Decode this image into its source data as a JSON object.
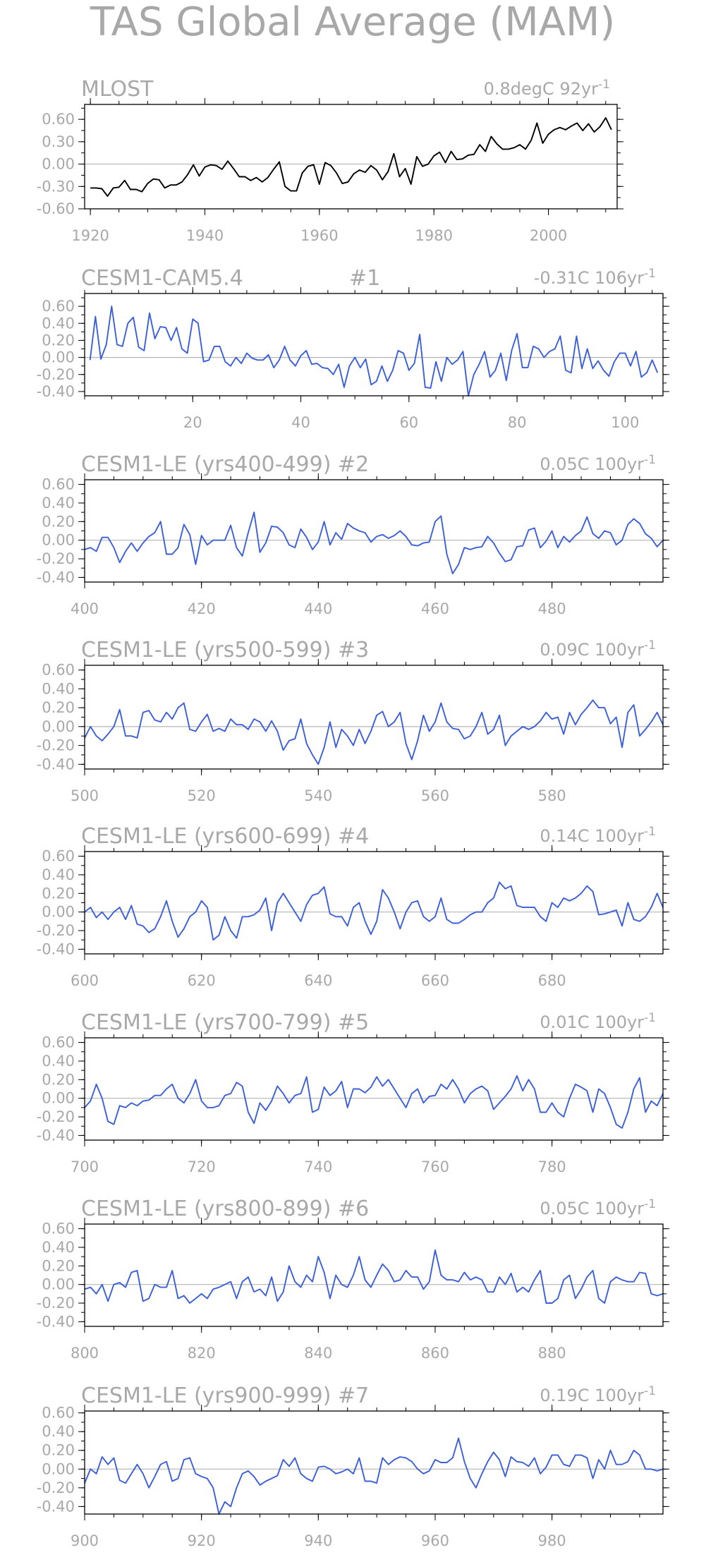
{
  "title": "TAS Global Average (MAM)",
  "chart_data": [
    {
      "type": "line",
      "title": "MLOST",
      "annotation": "0.8degC 92yr",
      "annotation_sup": "-1",
      "line_color": "#000000",
      "xlim": [
        1919,
        2012
      ],
      "ylim": [
        -0.6,
        0.8
      ],
      "yticks": [
        -0.6,
        -0.3,
        0.0,
        0.3,
        0.6
      ],
      "ytick_labels": [
        "-0.60",
        "-0.30",
        "0.00",
        "0.30",
        "0.60"
      ],
      "xticks": [
        1920,
        1940,
        1960,
        1980,
        2000
      ],
      "x": [
        1920,
        1921,
        1922,
        1923,
        1924,
        1925,
        1926,
        1927,
        1928,
        1929,
        1930,
        1931,
        1932,
        1933,
        1934,
        1935,
        1936,
        1937,
        1938,
        1939,
        1940,
        1941,
        1942,
        1943,
        1944,
        1945,
        1946,
        1947,
        1948,
        1949,
        1950,
        1951,
        1952,
        1953,
        1954,
        1955,
        1956,
        1957,
        1958,
        1959,
        1960,
        1961,
        1962,
        1963,
        1964,
        1965,
        1966,
        1967,
        1968,
        1969,
        1970,
        1971,
        1972,
        1973,
        1974,
        1975,
        1976,
        1977,
        1978,
        1979,
        1980,
        1981,
        1982,
        1983,
        1984,
        1985,
        1986,
        1987,
        1988,
        1989,
        1990,
        1991,
        1992,
        1993,
        1994,
        1995,
        1996,
        1997,
        1998,
        1999,
        2000,
        2001,
        2002,
        2003,
        2004,
        2005,
        2006,
        2007,
        2008,
        2009,
        2010,
        2011
      ],
      "values": [
        -0.32,
        -0.32,
        -0.33,
        -0.43,
        -0.32,
        -0.31,
        -0.22,
        -0.34,
        -0.34,
        -0.37,
        -0.26,
        -0.2,
        -0.21,
        -0.32,
        -0.28,
        -0.28,
        -0.24,
        -0.14,
        -0.01,
        -0.16,
        -0.04,
        -0.01,
        -0.02,
        -0.07,
        0.04,
        -0.06,
        -0.17,
        -0.17,
        -0.22,
        -0.18,
        -0.24,
        -0.18,
        -0.07,
        0.03,
        -0.3,
        -0.36,
        -0.36,
        -0.12,
        -0.03,
        -0.01,
        -0.27,
        0.02,
        -0.02,
        -0.12,
        -0.26,
        -0.24,
        -0.13,
        -0.08,
        -0.11,
        -0.02,
        -0.08,
        -0.21,
        -0.1,
        0.14,
        -0.17,
        -0.06,
        -0.27,
        0.1,
        -0.03,
        0.0,
        0.11,
        0.16,
        0.02,
        0.17,
        0.06,
        0.07,
        0.12,
        0.13,
        0.26,
        0.17,
        0.37,
        0.27,
        0.2,
        0.2,
        0.22,
        0.26,
        0.2,
        0.32,
        0.55,
        0.28,
        0.4,
        0.46,
        0.49,
        0.46,
        0.51,
        0.55,
        0.45,
        0.54,
        0.43,
        0.5,
        0.62,
        0.46
      ]
    },
    {
      "type": "line",
      "title": "CESM1-CAM5.4",
      "title_mid": "#1",
      "annotation": "-0.31C 106yr",
      "annotation_sup": "-1",
      "line_color": "#3b5fd9",
      "xlim": [
        0,
        107
      ],
      "ylim": [
        -0.45,
        0.75
      ],
      "yticks": [
        -0.4,
        -0.2,
        0.0,
        0.2,
        0.4,
        0.6
      ],
      "ytick_labels": [
        "-0.40",
        "-0.20",
        "0.00",
        "0.20",
        "0.40",
        "0.60"
      ],
      "xticks": [
        20,
        40,
        60,
        80,
        100
      ],
      "x_start": 1,
      "values": [
        -0.03,
        0.48,
        -0.02,
        0.15,
        0.6,
        0.15,
        0.13,
        0.4,
        0.47,
        0.12,
        0.08,
        0.52,
        0.22,
        0.36,
        0.35,
        0.2,
        0.35,
        0.1,
        0.05,
        0.45,
        0.4,
        -0.05,
        -0.03,
        0.13,
        0.13,
        -0.05,
        -0.1,
        0.0,
        -0.07,
        0.05,
        -0.01,
        -0.03,
        -0.03,
        0.03,
        -0.12,
        -0.03,
        0.13,
        -0.03,
        -0.1,
        0.02,
        0.08,
        -0.08,
        -0.07,
        -0.12,
        -0.13,
        -0.2,
        -0.08,
        -0.35,
        -0.1,
        0.0,
        -0.12,
        -0.02,
        -0.32,
        -0.28,
        -0.1,
        -0.28,
        -0.15,
        0.08,
        0.05,
        -0.15,
        -0.07,
        0.27,
        -0.35,
        -0.36,
        -0.05,
        -0.28,
        0.0,
        -0.08,
        -0.03,
        0.07,
        -0.45,
        -0.2,
        -0.08,
        0.07,
        -0.23,
        -0.15,
        0.05,
        -0.27,
        0.08,
        0.28,
        -0.12,
        -0.12,
        0.13,
        0.1,
        0.0,
        0.07,
        0.1,
        0.25,
        -0.15,
        -0.18,
        0.25,
        -0.13,
        0.1,
        -0.13,
        -0.04,
        -0.15,
        -0.22,
        -0.05,
        0.05,
        0.05,
        -0.1,
        0.07,
        -0.23,
        -0.18,
        -0.03,
        -0.18
      ]
    },
    {
      "type": "line",
      "title": "CESM1-LE (yrs400-499) #2",
      "annotation": "0.05C 100yr",
      "annotation_sup": "-1",
      "line_color": "#3b5fd9",
      "xlim": [
        400,
        499
      ],
      "ylim": [
        -0.45,
        0.65
      ],
      "yticks": [
        -0.4,
        -0.2,
        0.0,
        0.2,
        0.4,
        0.6
      ],
      "ytick_labels": [
        "-0.40",
        "-0.20",
        "0.00",
        "0.20",
        "0.40",
        "0.60"
      ],
      "xticks": [
        400,
        420,
        440,
        460,
        480
      ],
      "x_start": 400,
      "values": [
        -0.1,
        -0.08,
        -0.12,
        0.03,
        0.03,
        -0.08,
        -0.24,
        -0.12,
        -0.03,
        -0.12,
        -0.03,
        0.04,
        0.08,
        0.2,
        -0.15,
        -0.15,
        -0.08,
        0.17,
        0.06,
        -0.26,
        0.05,
        -0.05,
        0.0,
        0.0,
        0.0,
        0.16,
        -0.08,
        -0.17,
        0.08,
        0.3,
        -0.13,
        -0.03,
        0.15,
        0.14,
        0.08,
        -0.05,
        -0.08,
        0.12,
        0.03,
        -0.1,
        -0.02,
        0.2,
        -0.05,
        0.08,
        0.01,
        0.18,
        0.13,
        0.1,
        0.08,
        -0.02,
        0.04,
        0.06,
        0.02,
        0.05,
        0.1,
        0.04,
        -0.05,
        -0.06,
        -0.03,
        -0.02,
        0.2,
        0.26,
        -0.15,
        -0.36,
        -0.26,
        -0.08,
        -0.1,
        -0.08,
        -0.07,
        0.04,
        -0.03,
        -0.14,
        -0.23,
        -0.21,
        -0.07,
        -0.06,
        0.11,
        0.13,
        -0.08,
        -0.01,
        0.1,
        -0.08,
        0.04,
        -0.02,
        0.05,
        0.1,
        0.25,
        0.07,
        0.02,
        0.1,
        0.08,
        -0.05,
        0.0,
        0.17,
        0.23,
        0.18,
        0.07,
        0.02,
        -0.07,
        0.0
      ]
    },
    {
      "type": "line",
      "title": "CESM1-LE (yrs500-599) #3",
      "annotation": "0.09C 100yr",
      "annotation_sup": "-1",
      "line_color": "#3b5fd9",
      "xlim": [
        500,
        599
      ],
      "ylim": [
        -0.45,
        0.65
      ],
      "yticks": [
        -0.4,
        -0.2,
        0.0,
        0.2,
        0.4,
        0.6
      ],
      "ytick_labels": [
        "-0.40",
        "-0.20",
        "0.00",
        "0.20",
        "0.40",
        "0.60"
      ],
      "xticks": [
        500,
        520,
        540,
        560,
        580
      ],
      "x_start": 500,
      "values": [
        -0.12,
        0.0,
        -0.1,
        -0.15,
        -0.08,
        0.0,
        0.18,
        -0.1,
        -0.1,
        -0.12,
        0.15,
        0.17,
        0.07,
        0.05,
        0.15,
        0.08,
        0.2,
        0.25,
        -0.03,
        -0.05,
        0.05,
        0.13,
        -0.05,
        -0.02,
        -0.05,
        0.08,
        0.02,
        0.02,
        -0.03,
        0.08,
        0.05,
        -0.05,
        0.06,
        -0.05,
        -0.25,
        -0.15,
        -0.13,
        0.08,
        -0.18,
        -0.3,
        -0.4,
        -0.22,
        0.05,
        -0.22,
        -0.03,
        -0.1,
        -0.2,
        -0.03,
        -0.18,
        -0.05,
        0.12,
        0.16,
        0.0,
        0.05,
        0.15,
        -0.18,
        -0.35,
        -0.15,
        0.12,
        -0.05,
        0.05,
        0.25,
        0.05,
        -0.02,
        -0.03,
        -0.13,
        -0.1,
        0.0,
        0.15,
        -0.08,
        -0.03,
        0.12,
        -0.2,
        -0.1,
        -0.05,
        0.0,
        -0.03,
        0.0,
        0.06,
        0.15,
        0.08,
        0.1,
        -0.08,
        0.15,
        0.02,
        0.13,
        0.2,
        0.28,
        0.2,
        0.2,
        0.03,
        0.1,
        -0.22,
        0.15,
        0.23,
        -0.1,
        -0.03,
        0.05,
        0.15,
        0.02
      ]
    },
    {
      "type": "line",
      "title": "CESM1-LE (yrs600-699) #4",
      "annotation": "0.14C 100yr",
      "annotation_sup": "-1",
      "line_color": "#3b5fd9",
      "xlim": [
        600,
        699
      ],
      "ylim": [
        -0.45,
        0.65
      ],
      "yticks": [
        -0.4,
        -0.2,
        0.0,
        0.2,
        0.4,
        0.6
      ],
      "ytick_labels": [
        "-0.40",
        "-0.20",
        "0.00",
        "0.20",
        "0.40",
        "0.60"
      ],
      "xticks": [
        600,
        620,
        640,
        660,
        680
      ],
      "x_start": 600,
      "values": [
        0.0,
        0.05,
        -0.06,
        0.0,
        -0.08,
        0.0,
        0.05,
        -0.08,
        0.07,
        -0.13,
        -0.15,
        -0.22,
        -0.18,
        -0.05,
        0.12,
        -0.1,
        -0.27,
        -0.18,
        -0.05,
        0.0,
        0.12,
        0.05,
        -0.3,
        -0.25,
        -0.05,
        -0.2,
        -0.28,
        -0.05,
        -0.05,
        -0.03,
        0.02,
        0.15,
        -0.2,
        0.1,
        0.2,
        0.1,
        0.0,
        -0.1,
        0.08,
        0.18,
        0.2,
        0.27,
        -0.02,
        -0.05,
        -0.05,
        -0.15,
        0.05,
        0.1,
        -0.1,
        -0.24,
        -0.1,
        0.24,
        0.15,
        0.0,
        -0.18,
        0.0,
        0.1,
        0.12,
        -0.05,
        -0.1,
        -0.05,
        0.15,
        -0.08,
        -0.12,
        -0.12,
        -0.08,
        -0.03,
        0.0,
        0.0,
        0.1,
        0.15,
        0.32,
        0.25,
        0.28,
        0.07,
        0.05,
        0.05,
        0.05,
        -0.05,
        -0.1,
        0.1,
        0.05,
        0.15,
        0.12,
        0.15,
        0.2,
        0.28,
        0.22,
        -0.03,
        -0.02,
        0.0,
        0.02,
        -0.15,
        0.1,
        -0.08,
        -0.1,
        -0.05,
        0.05,
        0.2,
        0.05
      ]
    },
    {
      "type": "line",
      "title": "CESM1-LE (yrs700-799) #5",
      "annotation": "0.01C 100yr",
      "annotation_sup": "-1",
      "line_color": "#3b5fd9",
      "xlim": [
        700,
        799
      ],
      "ylim": [
        -0.45,
        0.65
      ],
      "yticks": [
        -0.4,
        -0.2,
        0.0,
        0.2,
        0.4,
        0.6
      ],
      "ytick_labels": [
        "-0.40",
        "-0.20",
        "0.00",
        "0.20",
        "0.40",
        "0.60"
      ],
      "xticks": [
        700,
        720,
        740,
        760,
        780
      ],
      "x_start": 700,
      "values": [
        -0.1,
        -0.03,
        0.15,
        0.0,
        -0.25,
        -0.28,
        -0.08,
        -0.1,
        -0.05,
        -0.08,
        -0.03,
        -0.02,
        0.03,
        0.03,
        0.1,
        0.15,
        0.0,
        -0.05,
        0.05,
        0.2,
        -0.03,
        -0.1,
        -0.1,
        -0.08,
        0.03,
        0.05,
        0.17,
        0.13,
        -0.15,
        -0.27,
        -0.05,
        -0.13,
        -0.03,
        0.13,
        0.05,
        -0.05,
        0.03,
        0.05,
        0.23,
        -0.15,
        -0.12,
        0.12,
        0.03,
        0.08,
        0.18,
        -0.1,
        0.1,
        0.1,
        0.06,
        0.12,
        0.23,
        0.13,
        0.2,
        0.1,
        0.0,
        -0.1,
        0.05,
        0.1,
        -0.05,
        0.02,
        0.03,
        0.15,
        0.1,
        0.2,
        0.1,
        -0.05,
        0.05,
        0.1,
        0.13,
        0.08,
        -0.12,
        -0.05,
        0.02,
        0.1,
        0.24,
        0.08,
        0.2,
        0.1,
        -0.15,
        -0.15,
        -0.05,
        -0.15,
        -0.2,
        0.0,
        0.15,
        0.12,
        0.08,
        -0.15,
        0.1,
        0.05,
        -0.1,
        -0.28,
        -0.32,
        -0.15,
        0.1,
        0.22,
        -0.15,
        -0.03,
        -0.08,
        0.05
      ]
    },
    {
      "type": "line",
      "title": "CESM1-LE (yrs800-899) #6",
      "annotation": "0.05C 100yr",
      "annotation_sup": "-1",
      "line_color": "#3b5fd9",
      "xlim": [
        800,
        899
      ],
      "ylim": [
        -0.45,
        0.65
      ],
      "yticks": [
        -0.4,
        -0.2,
        0.0,
        0.2,
        0.4,
        0.6
      ],
      "ytick_labels": [
        "-0.40",
        "-0.20",
        "0.00",
        "0.20",
        "0.40",
        "0.60"
      ],
      "xticks": [
        800,
        820,
        840,
        860,
        880
      ],
      "x_start": 800,
      "values": [
        -0.05,
        -0.03,
        -0.1,
        0.0,
        -0.18,
        0.0,
        0.02,
        -0.03,
        0.13,
        0.15,
        -0.18,
        -0.15,
        0.0,
        -0.03,
        -0.03,
        0.15,
        -0.15,
        -0.12,
        -0.2,
        -0.15,
        -0.1,
        -0.15,
        -0.05,
        -0.03,
        0.0,
        0.03,
        -0.15,
        0.03,
        0.08,
        -0.08,
        -0.05,
        -0.12,
        0.08,
        -0.18,
        -0.08,
        0.2,
        0.03,
        -0.03,
        0.1,
        0.03,
        0.3,
        0.13,
        -0.15,
        0.1,
        0.0,
        -0.03,
        0.1,
        0.3,
        0.05,
        -0.03,
        0.1,
        0.22,
        0.15,
        0.03,
        0.05,
        0.15,
        0.08,
        0.08,
        -0.05,
        0.03,
        0.37,
        0.1,
        0.05,
        0.05,
        0.03,
        0.13,
        0.05,
        0.08,
        0.05,
        -0.08,
        -0.08,
        0.08,
        0.0,
        0.12,
        -0.08,
        -0.03,
        -0.08,
        0.05,
        0.15,
        -0.2,
        -0.2,
        -0.15,
        0.05,
        0.1,
        -0.15,
        -0.05,
        0.08,
        0.15,
        -0.15,
        -0.2,
        0.03,
        0.08,
        0.05,
        0.03,
        0.03,
        0.13,
        0.12,
        -0.1,
        -0.12,
        -0.1
      ]
    },
    {
      "type": "line",
      "title": "CESM1-LE (yrs900-999) #7",
      "annotation": "0.19C 100yr",
      "annotation_sup": "-1",
      "line_color": "#3b5fd9",
      "xlim": [
        900,
        999
      ],
      "ylim": [
        -0.48,
        0.62
      ],
      "yticks": [
        -0.4,
        -0.2,
        0.0,
        0.2,
        0.4,
        0.6
      ],
      "ytick_labels": [
        "-0.40",
        "-0.20",
        "0.00",
        "0.20",
        "0.40",
        "0.60"
      ],
      "xticks": [
        900,
        920,
        940,
        960,
        980
      ],
      "x_start": 900,
      "values": [
        -0.15,
        0.0,
        -0.05,
        0.13,
        0.05,
        0.12,
        -0.12,
        -0.15,
        -0.05,
        0.05,
        -0.05,
        -0.2,
        -0.08,
        0.05,
        0.08,
        -0.13,
        -0.1,
        0.1,
        0.12,
        -0.05,
        -0.08,
        -0.1,
        -0.2,
        -0.48,
        -0.35,
        -0.4,
        -0.2,
        -0.05,
        -0.02,
        -0.08,
        -0.17,
        -0.13,
        -0.1,
        -0.07,
        0.1,
        0.03,
        0.12,
        -0.05,
        -0.1,
        -0.13,
        0.02,
        0.03,
        0.0,
        -0.05,
        -0.03,
        0.0,
        -0.05,
        0.12,
        -0.13,
        -0.13,
        -0.15,
        0.12,
        0.05,
        0.1,
        0.13,
        0.12,
        0.08,
        0.0,
        -0.05,
        -0.02,
        0.1,
        0.07,
        0.07,
        0.12,
        0.33,
        0.08,
        -0.1,
        -0.2,
        -0.05,
        0.08,
        0.18,
        0.1,
        -0.08,
        0.13,
        0.08,
        0.07,
        0.03,
        0.12,
        -0.05,
        0.02,
        0.15,
        0.15,
        0.05,
        0.03,
        0.15,
        0.15,
        0.12,
        -0.1,
        0.1,
        0.0,
        0.2,
        0.05,
        0.05,
        0.08,
        0.2,
        0.15,
        0.0,
        0.0,
        -0.02,
        0.0
      ]
    }
  ]
}
